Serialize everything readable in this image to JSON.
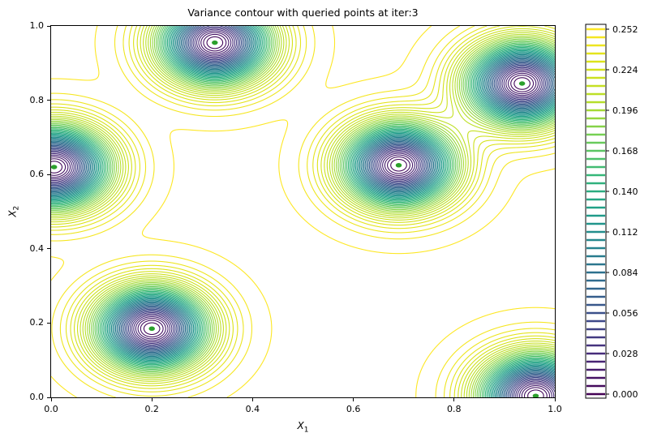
{
  "chart_data": {
    "type": "contour",
    "title": "Variance contour with queried points at iter:3",
    "iteration": 3,
    "xlabel": {
      "main": "X",
      "sub": "1"
    },
    "ylabel": {
      "main": "X",
      "sub": "2"
    },
    "xlim": [
      0,
      1
    ],
    "ylim": [
      0,
      1
    ],
    "x_ticks": [
      "0.0",
      "0.2",
      "0.4",
      "0.6",
      "0.8",
      "1.0"
    ],
    "y_ticks": [
      "0.0",
      "0.2",
      "0.4",
      "0.6",
      "0.8",
      "1.0"
    ],
    "grid": false,
    "queried_points": [
      [
        0.325,
        0.955
      ],
      [
        0.935,
        0.845
      ],
      [
        0.006,
        0.62
      ],
      [
        0.69,
        0.625
      ],
      [
        0.2,
        0.185
      ],
      [
        0.962,
        0.004
      ]
    ],
    "marker": {
      "shape": "circle",
      "fill": "#2ca02c",
      "edge": "#ffffff"
    },
    "field": {
      "description": "GP posterior variance, ~0 at queried points rising to prior variance far away",
      "vmax_far_field": 0.2535,
      "lengthscale": 0.105,
      "num_levels": 46,
      "level_step": 0.0056,
      "level_min": 0.0,
      "level_max": 0.252
    },
    "colorbar": {
      "tick_labels": [
        "0.000",
        "0.028",
        "0.056",
        "0.084",
        "0.112",
        "0.140",
        "0.168",
        "0.196",
        "0.224",
        "0.252"
      ],
      "ticks_every_n_levels": 5,
      "outline_color": "#000000"
    },
    "colormap": {
      "name": "viridis",
      "anchors": [
        "#440154",
        "#482878",
        "#3e4989",
        "#31688e",
        "#26828e",
        "#1f9e89",
        "#35b779",
        "#6ece58",
        "#b5de2b",
        "#d8e219",
        "#fde725"
      ]
    },
    "background_color": "#ffffff"
  }
}
